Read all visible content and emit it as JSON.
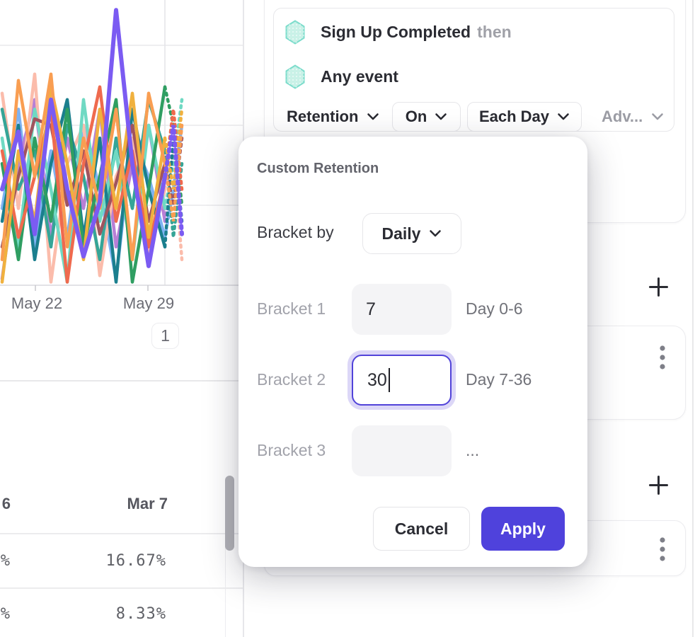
{
  "colors": {
    "accent_indigo": "#4f42dc",
    "focus_border": "#5143d9",
    "focus_ring": "#dcd7f7",
    "hexagon_fill": "#c9f1e7",
    "hexagon_stroke": "#7bdccb",
    "grid": "#e9e9ec",
    "axis": "#d9d9dd"
  },
  "icons": {
    "event-hexagon-icon": "hexagon",
    "chevron-down-icon": "chevron-down",
    "add-icon": "plus",
    "kebab-menu-icon": "vertical-three-dots",
    "text-cursor": "caret"
  },
  "builder": {
    "event1": "Sign Up Completed",
    "then_label": "then",
    "event2": "Any event",
    "retention_dropdown": "Retention",
    "on_dropdown": "On",
    "each_day_dropdown": "Each Day",
    "advanced_dropdown": "Adv..."
  },
  "modal": {
    "title": "Custom Retention",
    "bracket_by_label": "Bracket by",
    "bracket_by_value": "Daily",
    "rows": [
      {
        "label": "Bracket 1",
        "value": "7",
        "range": "Day 0-6",
        "focused": false
      },
      {
        "label": "Bracket 2",
        "value": "30",
        "range": "Day 7-36",
        "focused": true
      },
      {
        "label": "Bracket 3",
        "value": "",
        "range": "...",
        "focused": false
      }
    ],
    "cancel_label": "Cancel",
    "apply_label": "Apply"
  },
  "table": {
    "header_left_truncated": "6",
    "header_main": "Mar 7",
    "rows": [
      {
        "left_truncated": "%",
        "main": "16.67%"
      },
      {
        "left_truncated": "%",
        "main": "8.33%"
      }
    ]
  },
  "chart": {
    "pagination": "1",
    "x_tick_labels": [
      "May 22",
      "May 29"
    ],
    "chart_data": {
      "type": "line",
      "title": "",
      "xlabel": "",
      "ylabel": "",
      "unit": "%",
      "ylim": [
        0,
        100
      ],
      "grid": true,
      "legend": "none",
      "x_tick_labels": [
        "May 22",
        "May 29"
      ],
      "tick_x": [
        50,
        209
      ],
      "gridlines_pct": [
        25,
        50,
        75
      ],
      "vertical_gridline_x": 233,
      "note_values": "estimated from gridlines; solid = observed, forecast = dashed continuation",
      "series": [
        {
          "name": "light-blue",
          "color": "#7fb3f2",
          "values": [
            24,
            55,
            12,
            42,
            15,
            50,
            30,
            2,
            46,
            34,
            15
          ],
          "forecast": [
            30,
            50
          ]
        },
        {
          "name": "orchid",
          "color": "#b77fd6",
          "values": [
            2,
            38,
            58,
            15,
            46,
            24,
            55,
            12,
            38,
            50,
            20
          ],
          "forecast": [
            42,
            15
          ]
        },
        {
          "name": "salmon",
          "color": "#fbbcab",
          "values": [
            60,
            24,
            66,
            1,
            38,
            50,
            3,
            34,
            46,
            10,
            30
          ],
          "forecast": [
            42,
            8
          ]
        },
        {
          "name": "teal",
          "color": "#35a597",
          "values": [
            55,
            30,
            42,
            12,
            50,
            34,
            8,
            46,
            24,
            58,
            42
          ],
          "forecast": [
            15,
            38
          ]
        },
        {
          "name": "mint",
          "color": "#6fd9c3",
          "values": [
            46,
            12,
            55,
            30,
            1,
            58,
            20,
            42,
            8,
            50,
            24
          ],
          "forecast": [
            38,
            58
          ]
        },
        {
          "name": "petrol",
          "color": "#1b7f8e",
          "values": [
            20,
            50,
            8,
            38,
            58,
            15,
            46,
            1,
            55,
            30,
            12
          ],
          "forecast": [
            46,
            20
          ]
        },
        {
          "name": "maroon",
          "color": "#a0545e",
          "values": [
            12,
            34,
            52,
            50,
            25,
            42,
            16,
            32,
            50,
            20,
            38
          ],
          "forecast": [
            25,
            46
          ]
        },
        {
          "name": "green",
          "color": "#2f9e62",
          "values": [
            38,
            8,
            46,
            20,
            55,
            12,
            34,
            58,
            1,
            30,
            62
          ],
          "forecast": [
            50,
            25
          ]
        },
        {
          "name": "coral",
          "color": "#ef6a4e",
          "values": [
            42,
            15,
            34,
            55,
            1,
            38,
            62,
            20,
            42,
            12,
            34
          ],
          "forecast": [
            55,
            30
          ]
        },
        {
          "name": "amber",
          "color": "#f0b13e",
          "values": [
            1,
            42,
            20,
            62,
            38,
            8,
            55,
            24,
            60,
            15,
            46
          ],
          "forecast": [
            30,
            55
          ]
        },
        {
          "name": "orange",
          "color": "#f99e52",
          "values": [
            8,
            64,
            34,
            66,
            12,
            46,
            24,
            55,
            8,
            60,
            38
          ],
          "forecast": [
            20,
            50
          ]
        },
        {
          "name": "purple",
          "color": "#7b5bf2",
          "width": 6,
          "values": [
            30,
            48,
            16,
            58,
            30,
            9,
            26,
            86,
            38,
            6,
            34
          ],
          "forecast": [
            50,
            16
          ]
        }
      ]
    }
  }
}
